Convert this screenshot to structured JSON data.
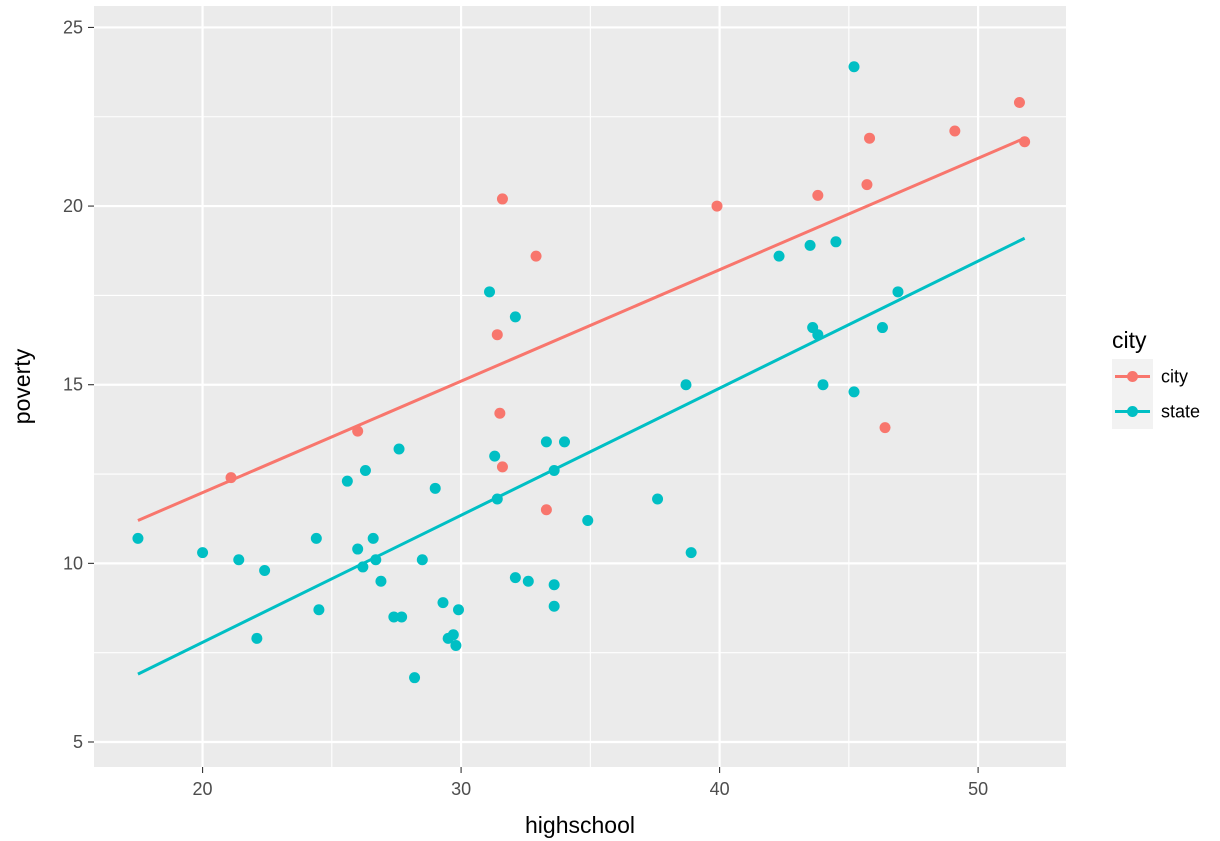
{
  "chart_data": {
    "type": "scatter",
    "title": "",
    "xlabel": "highschool",
    "ylabel": "poverty",
    "xlim": [
      15.8,
      53.4
    ],
    "ylim": [
      4.3,
      25.6
    ],
    "xticks": [
      20,
      30,
      40,
      50
    ],
    "yticks": [
      5,
      10,
      15,
      20,
      25
    ],
    "grid": true,
    "background": "#EBEBEB",
    "legend": {
      "title": "city",
      "position": "right",
      "entries": [
        "city",
        "state"
      ]
    },
    "series": [
      {
        "name": "city",
        "color": "#F8766D",
        "points": [
          [
            21.1,
            12.4
          ],
          [
            26.0,
            13.7
          ],
          [
            31.4,
            16.4
          ],
          [
            31.5,
            14.2
          ],
          [
            31.6,
            12.7
          ],
          [
            31.6,
            20.2
          ],
          [
            32.9,
            18.6
          ],
          [
            33.3,
            11.5
          ],
          [
            39.9,
            20.0
          ],
          [
            43.8,
            20.3
          ],
          [
            45.7,
            20.6
          ],
          [
            45.8,
            21.9
          ],
          [
            46.4,
            13.8
          ],
          [
            49.1,
            22.1
          ],
          [
            51.6,
            22.9
          ],
          [
            51.8,
            21.8
          ]
        ],
        "fit": [
          [
            17.5,
            11.2
          ],
          [
            51.8,
            21.9
          ]
        ]
      },
      {
        "name": "state",
        "color": "#00BFC4",
        "points": [
          [
            17.5,
            10.7
          ],
          [
            20.0,
            10.3
          ],
          [
            21.4,
            10.1
          ],
          [
            22.1,
            7.9
          ],
          [
            22.4,
            9.8
          ],
          [
            24.4,
            10.7
          ],
          [
            24.5,
            8.7
          ],
          [
            25.6,
            12.3
          ],
          [
            26.0,
            10.4
          ],
          [
            26.2,
            9.9
          ],
          [
            26.3,
            12.6
          ],
          [
            26.6,
            10.7
          ],
          [
            26.7,
            10.1
          ],
          [
            26.9,
            9.5
          ],
          [
            27.4,
            8.5
          ],
          [
            27.6,
            13.2
          ],
          [
            27.7,
            8.5
          ],
          [
            28.2,
            6.8
          ],
          [
            28.5,
            10.1
          ],
          [
            29.0,
            12.1
          ],
          [
            29.3,
            8.9
          ],
          [
            29.5,
            7.9
          ],
          [
            29.7,
            8.0
          ],
          [
            29.8,
            7.7
          ],
          [
            29.9,
            8.7
          ],
          [
            31.1,
            17.6
          ],
          [
            31.3,
            13.0
          ],
          [
            31.4,
            11.8
          ],
          [
            32.1,
            16.9
          ],
          [
            32.1,
            9.6
          ],
          [
            32.6,
            9.5
          ],
          [
            33.3,
            13.4
          ],
          [
            33.6,
            9.4
          ],
          [
            33.6,
            8.8
          ],
          [
            33.6,
            12.6
          ],
          [
            34.0,
            13.4
          ],
          [
            34.9,
            11.2
          ],
          [
            37.6,
            11.8
          ],
          [
            38.7,
            15.0
          ],
          [
            38.9,
            10.3
          ],
          [
            42.3,
            18.6
          ],
          [
            43.5,
            18.9
          ],
          [
            43.6,
            16.6
          ],
          [
            43.8,
            16.4
          ],
          [
            44.0,
            15.0
          ],
          [
            44.5,
            19.0
          ],
          [
            45.2,
            23.9
          ],
          [
            45.2,
            14.8
          ],
          [
            46.3,
            16.6
          ],
          [
            46.9,
            17.6
          ]
        ],
        "fit": [
          [
            17.5,
            6.9
          ],
          [
            51.8,
            19.1
          ]
        ]
      }
    ]
  }
}
